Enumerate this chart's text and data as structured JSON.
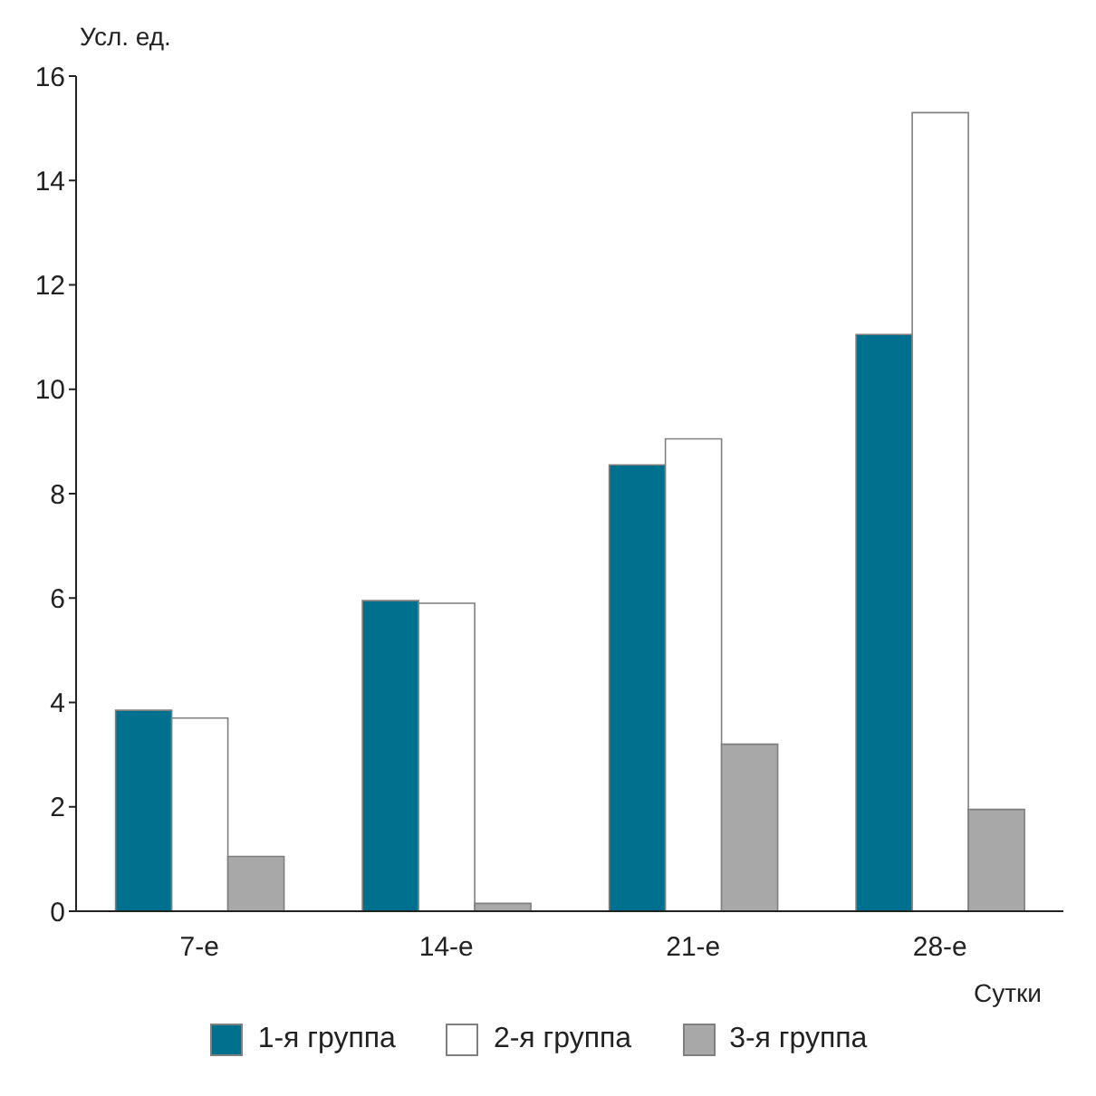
{
  "chart_data": {
    "type": "bar",
    "ylabel": "Усл. ед.",
    "xlabel": "Сутки",
    "categories": [
      "7-е",
      "14-е",
      "21-е",
      "28-е"
    ],
    "series": [
      {
        "name": "1-я группа",
        "color": "#00708f",
        "values": [
          3.85,
          5.95,
          8.55,
          11.05
        ]
      },
      {
        "name": "2-я группа",
        "color": "#ffffff",
        "values": [
          3.7,
          5.9,
          9.05,
          15.3
        ]
      },
      {
        "name": "3-я группа",
        "color": "#a8a8a8",
        "values": [
          1.05,
          0.15,
          3.2,
          1.95
        ]
      }
    ],
    "ylim": [
      0,
      16
    ],
    "yticks": [
      0,
      2,
      4,
      6,
      8,
      10,
      12,
      14,
      16
    ],
    "grid": false,
    "legend": "bottom"
  }
}
